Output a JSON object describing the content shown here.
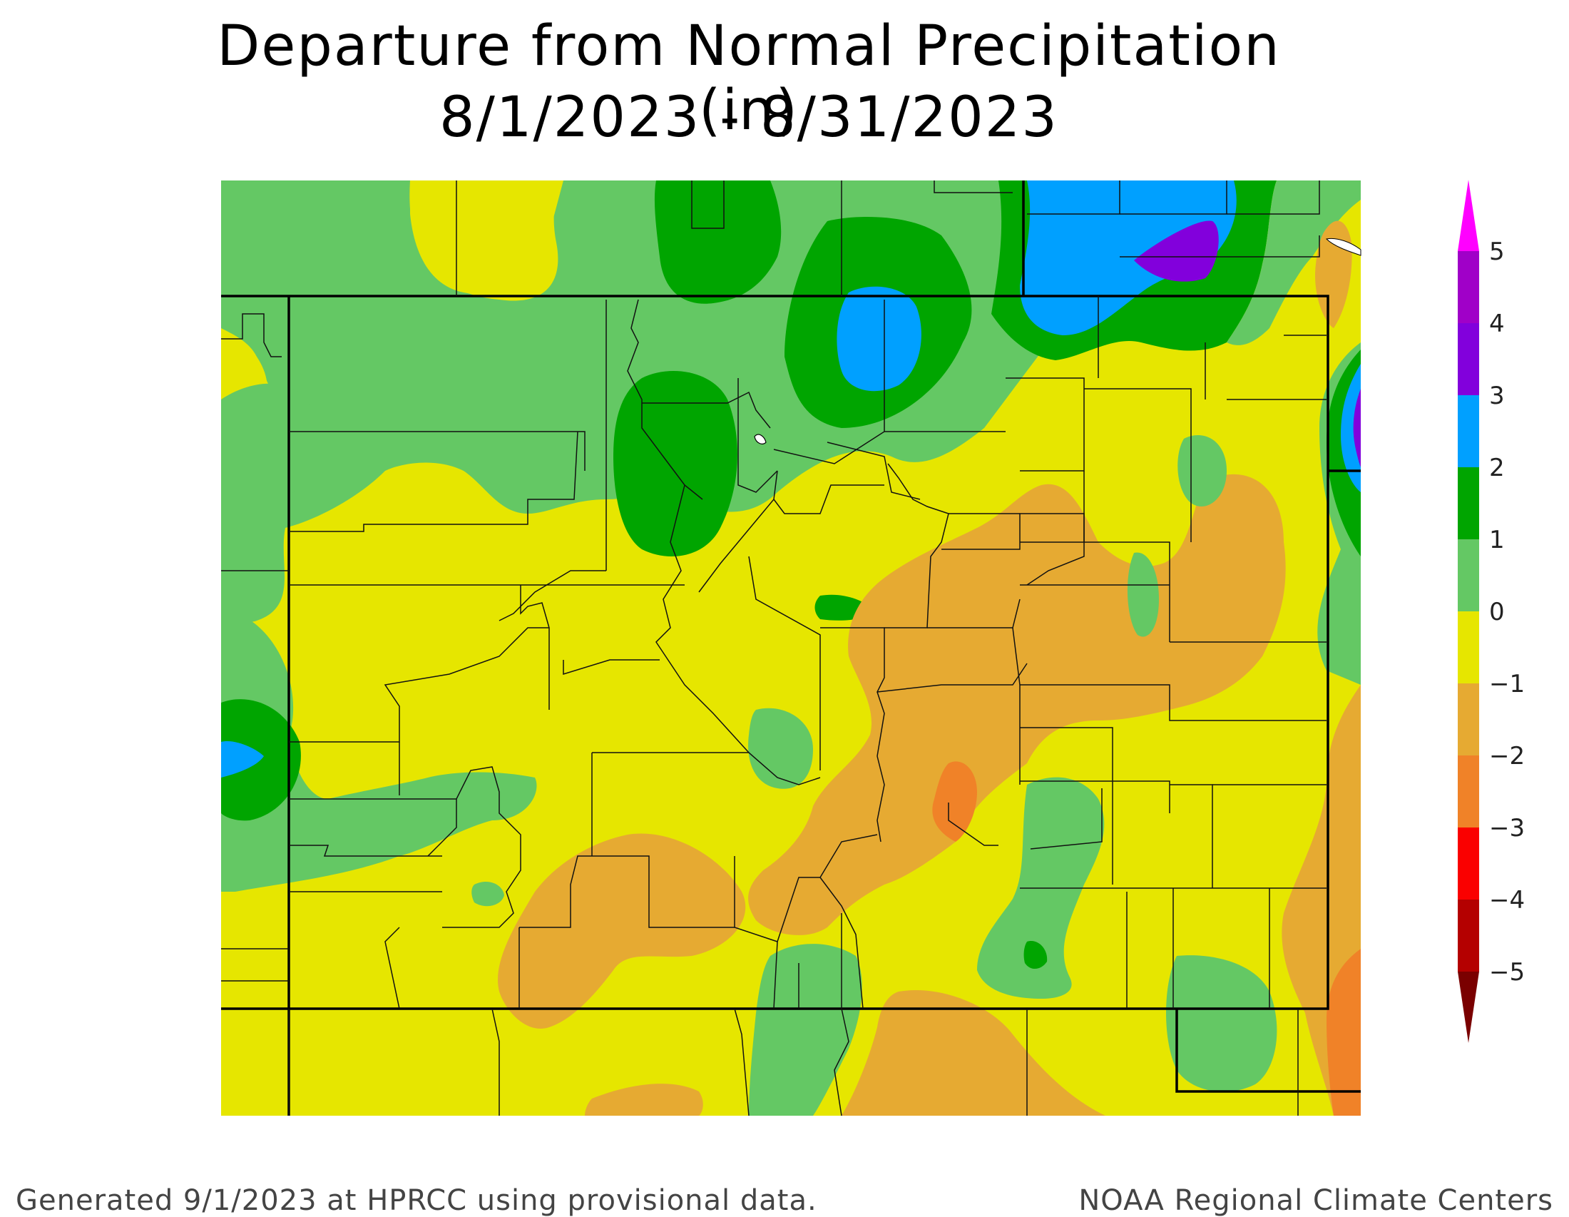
{
  "title": {
    "line1": "Departure from Normal Precipitation (in)",
    "line2": "8/1/2023 - 8/31/2023"
  },
  "footer": {
    "left": "Generated 9/1/2023 at HPRCC using provisional data.",
    "right": "NOAA Regional Climate Centers"
  },
  "colorbar": {
    "unit": "in",
    "levels": [
      "5",
      "4",
      "3",
      "2",
      "1",
      "0",
      "−1",
      "−2",
      "−3",
      "−4",
      "−5"
    ],
    "bands": [
      {
        "min": 4,
        "max": 5,
        "color": "#a000c8"
      },
      {
        "min": 3,
        "max": 4,
        "color": "#8200dc"
      },
      {
        "min": 2,
        "max": 3,
        "color": "#00a0ff"
      },
      {
        "min": 1,
        "max": 2,
        "color": "#00a500"
      },
      {
        "min": 0,
        "max": 1,
        "color": "#64c864"
      },
      {
        "min": -1,
        "max": 0,
        "color": "#e6e600"
      },
      {
        "min": -2,
        "max": -1,
        "color": "#e6aa32"
      },
      {
        "min": -3,
        "max": -2,
        "color": "#f08228"
      },
      {
        "min": -4,
        "max": -3,
        "color": "#fa0000"
      },
      {
        "min": -5,
        "max": -4,
        "color": "#b40000"
      }
    ],
    "above_color": "#ff00ff",
    "below_color": "#7a0000"
  },
  "map": {
    "region": "Colorado",
    "background_color": "#e6e600"
  }
}
